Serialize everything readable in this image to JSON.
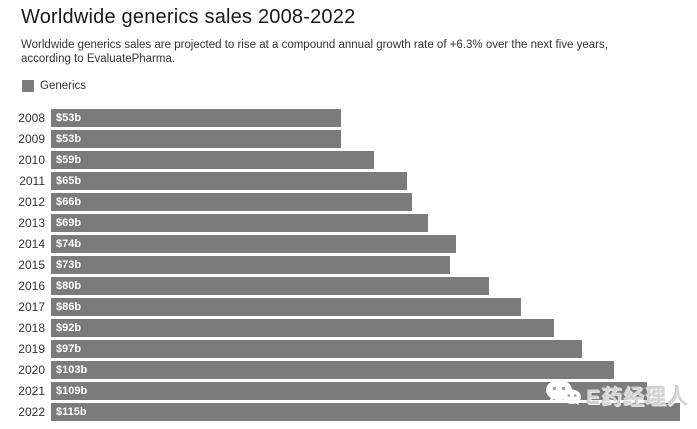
{
  "header": {
    "title": "Worldwide generics sales 2008-2022",
    "subtitle": "Worldwide generics sales are projected to rise at a compound annual growth rate of +6.3% over the next five years, according to EvaluatePharma."
  },
  "legend": {
    "label": "Generics",
    "color": "#7b7b7b"
  },
  "chart_data": {
    "type": "bar",
    "orientation": "horizontal",
    "title": "Worldwide generics sales 2008-2022",
    "subtitle": "Worldwide generics sales are projected to rise at a compound annual growth rate of +6.3% over the next five years, according to EvaluatePharma.",
    "series_name": "Generics",
    "categories": [
      "2008",
      "2009",
      "2010",
      "2011",
      "2012",
      "2013",
      "2014",
      "2015",
      "2016",
      "2017",
      "2018",
      "2019",
      "2020",
      "2021",
      "2022"
    ],
    "values": [
      53,
      53,
      59,
      65,
      66,
      69,
      74,
      73,
      80,
      86,
      92,
      97,
      103,
      109,
      115
    ],
    "value_labels": [
      "$53b",
      "$53b",
      "$59b",
      "$65b",
      "$66b",
      "$69b",
      "$74b",
      "$73b",
      "$80b",
      "$86b",
      "$92b",
      "$97b",
      "$103b",
      "$109b",
      "$115b"
    ],
    "unit": "billion USD",
    "xlim": [
      0,
      115
    ],
    "grid": false,
    "legend_position": "top-left",
    "bar_color": "#7b7b7b",
    "value_label_color": "#ffffff"
  },
  "watermark": {
    "text": "E药经理人",
    "icon": "wechat-icon"
  }
}
